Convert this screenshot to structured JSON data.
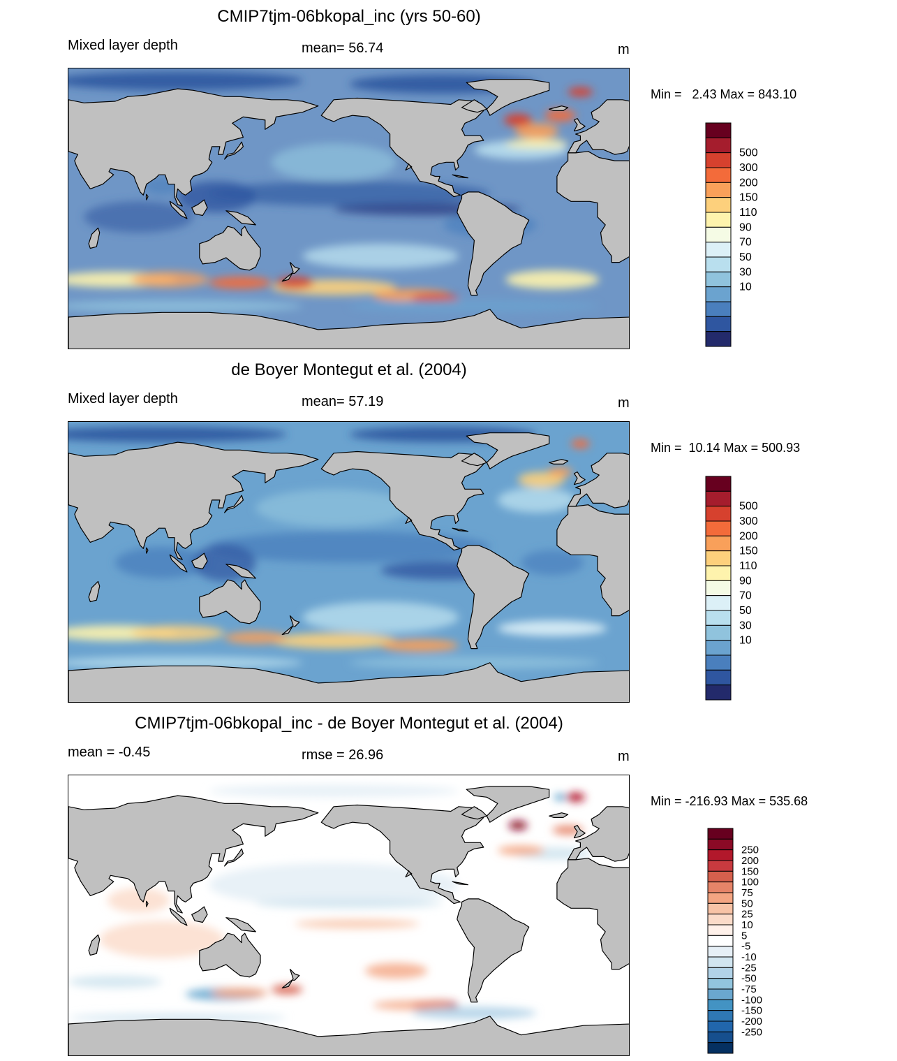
{
  "colors": {
    "land": "#c0c0c0",
    "coast": "#000000",
    "frame": "#000000"
  },
  "panels": [
    {
      "id": "model",
      "title": "CMIP7tjm-06bkopal_inc (yrs 50-60)",
      "left_label": "Mixed layer depth",
      "center_label": "mean=  56.74",
      "unit": "m",
      "minmax": "Min =   2.43 Max = 843.10",
      "colorbar": {
        "labels": [
          "500",
          "300",
          "200",
          "150",
          "110",
          "90",
          "70",
          "50",
          "30",
          "10"
        ],
        "colors": [
          "#67001f",
          "#a51d2d",
          "#d6412e",
          "#f36b3a",
          "#f9a05a",
          "#fdd07c",
          "#fef3ad",
          "#f5fbe5",
          "#dcf0f7",
          "#b9dfee",
          "#90c3dd",
          "#6ba3cf",
          "#4a7fbd",
          "#2f56a0",
          "#232a6b"
        ]
      }
    },
    {
      "id": "obs",
      "title": "de Boyer Montegut et al. (2004)",
      "left_label": "Mixed layer depth",
      "center_label": "mean=  57.19",
      "unit": "m",
      "minmax": "Min =  10.14 Max = 500.93",
      "colorbar": {
        "labels": [
          "500",
          "300",
          "200",
          "150",
          "110",
          "90",
          "70",
          "50",
          "30",
          "10"
        ],
        "colors": [
          "#67001f",
          "#a51d2d",
          "#d6412e",
          "#f36b3a",
          "#f9a05a",
          "#fdd07c",
          "#fef3ad",
          "#f5fbe5",
          "#dcf0f7",
          "#b9dfee",
          "#90c3dd",
          "#6ba3cf",
          "#4a7fbd",
          "#2f56a0",
          "#232a6b"
        ]
      }
    },
    {
      "id": "diff",
      "title": "CMIP7tjm-06bkopal_inc - de Boyer Montegut et al. (2004)",
      "left_label": "mean =  -0.45",
      "center_label": "rmse =  26.96",
      "unit": "m",
      "minmax": "Min = -216.93 Max = 535.68",
      "colorbar": {
        "labels": [
          "250",
          "200",
          "150",
          "100",
          "75",
          "50",
          "25",
          "10",
          "5",
          "-5",
          "-10",
          "-25",
          "-50",
          "-75",
          "-100",
          "-150",
          "-200",
          "-250"
        ],
        "colors": [
          "#67001f",
          "#8b0a26",
          "#b2182b",
          "#c93a3f",
          "#d6604d",
          "#e68468",
          "#f4a582",
          "#f8c3a6",
          "#fbdbc9",
          "#fff1ea",
          "#ffffff",
          "#e6eff6",
          "#d1e5f0",
          "#b2d3e8",
          "#92c5de",
          "#6aa7cf",
          "#4393c3",
          "#2f78b4",
          "#2166ac",
          "#164f8e",
          "#053061"
        ]
      }
    }
  ]
}
